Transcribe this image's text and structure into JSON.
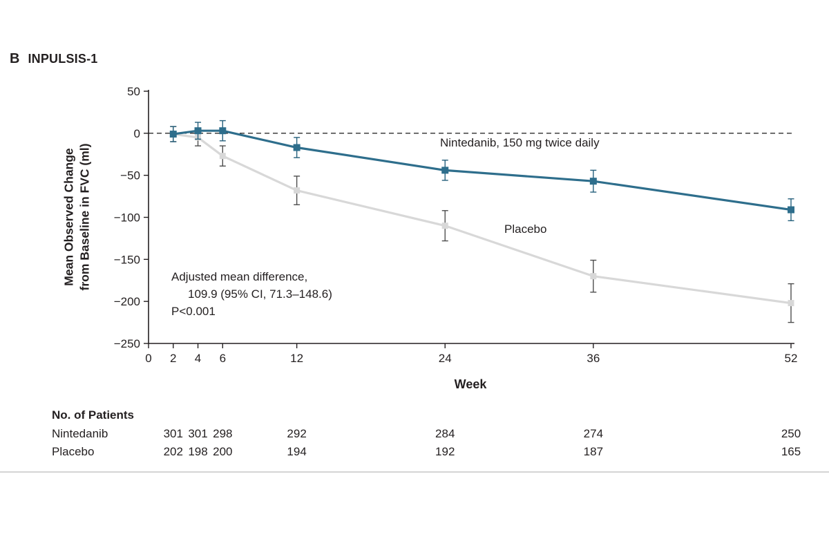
{
  "panel": {
    "letter": "B",
    "title": "INPULSIS-1"
  },
  "chart_data": {
    "type": "line",
    "title": "INPULSIS-1",
    "xlabel": "Week",
    "ylabel": [
      "Mean Observed Change",
      "from Baseline in FVC (ml)"
    ],
    "xlim": [
      0,
      52
    ],
    "ylim": [
      -250,
      50
    ],
    "xticks": [
      0,
      2,
      4,
      6,
      12,
      24,
      36,
      52
    ],
    "yticks": [
      50,
      0,
      -50,
      -100,
      -150,
      -200,
      -250
    ],
    "zero_reference_line": true,
    "x_weeks": [
      2,
      4,
      6,
      12,
      24,
      36,
      52
    ],
    "series": [
      {
        "name": "Nintedanib, 150 mg twice daily",
        "values": [
          -1,
          3,
          3,
          -17,
          -44,
          -57,
          -91
        ],
        "errors": [
          9,
          10,
          12,
          12,
          12,
          13,
          13
        ],
        "line_color": "#2e6e8c",
        "error_color": "#25607c",
        "marker": "square",
        "marker_size": 9
      },
      {
        "name": "Placebo",
        "values": [
          -1,
          -5,
          -27,
          -68,
          -110,
          -170,
          -202
        ],
        "errors": [
          9,
          10,
          12,
          17,
          18,
          19,
          23
        ],
        "line_color": "#d8d8d8",
        "error_color": "#4d4d4d",
        "marker": "square",
        "marker_size": 8
      }
    ],
    "annotation": {
      "line1": "Adjusted mean difference,",
      "line2": "109.9 (95% CI, 71.3–148.6)",
      "line3": "P<0.001"
    }
  },
  "patients_table": {
    "header": "No. of Patients",
    "weeks": [
      2,
      4,
      6,
      12,
      24,
      36,
      52
    ],
    "rows": [
      {
        "label": "Nintedanib",
        "values": [
          "301",
          "301",
          "298",
          "292",
          "284",
          "274",
          "250"
        ]
      },
      {
        "label": "Placebo",
        "values": [
          "202",
          "198",
          "200",
          "194",
          "192",
          "187",
          "165"
        ]
      }
    ]
  }
}
